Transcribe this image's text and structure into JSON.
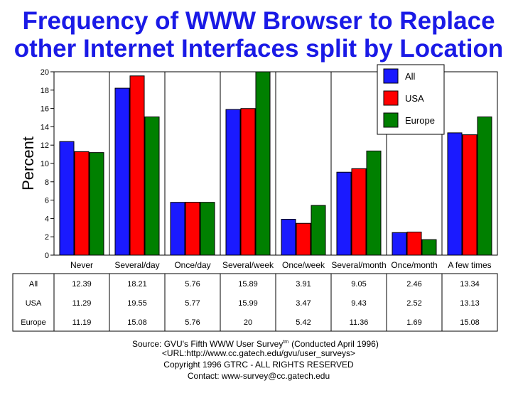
{
  "title_lines": [
    "Frequency of WWW Browser to Replace",
    "other Internet Interfaces split by Location"
  ],
  "chart_data": {
    "type": "bar",
    "title": "Frequency of WWW Browser to Replace other Internet Interfaces split by Location",
    "ylabel": "Percent",
    "xlabel": "",
    "ylim": [
      0,
      20
    ],
    "yticks": [
      0,
      2,
      4,
      6,
      8,
      10,
      12,
      14,
      16,
      18,
      20
    ],
    "grid": false,
    "legend_position": "top-right",
    "categories": [
      "Never",
      "Several/day",
      "Once/day",
      "Several/week",
      "Once/week",
      "Several/month",
      "Once/month",
      "A few times"
    ],
    "series": [
      {
        "name": "All",
        "color": "#1a1aff",
        "values": [
          12.39,
          18.21,
          5.76,
          15.89,
          3.91,
          9.05,
          2.46,
          13.34
        ]
      },
      {
        "name": "USA",
        "color": "#ff0000",
        "values": [
          11.29,
          19.55,
          5.77,
          15.99,
          3.47,
          9.43,
          2.52,
          13.13
        ]
      },
      {
        "name": "Europe",
        "color": "#008000",
        "values": [
          11.19,
          15.08,
          5.76,
          20,
          5.42,
          11.36,
          1.69,
          15.08
        ]
      }
    ]
  },
  "source_lines": [
    "Source: GVU's Fifth WWW User Survey",
    "(Conducted April 1996)",
    "<URL:http://www.cc.gatech.edu/gvu/user_surveys>",
    "Copyright 1996 GTRC -  ALL RIGHTS RESERVED",
    "Contact: www-survey@cc.gatech.edu"
  ],
  "source_tm": "tm"
}
